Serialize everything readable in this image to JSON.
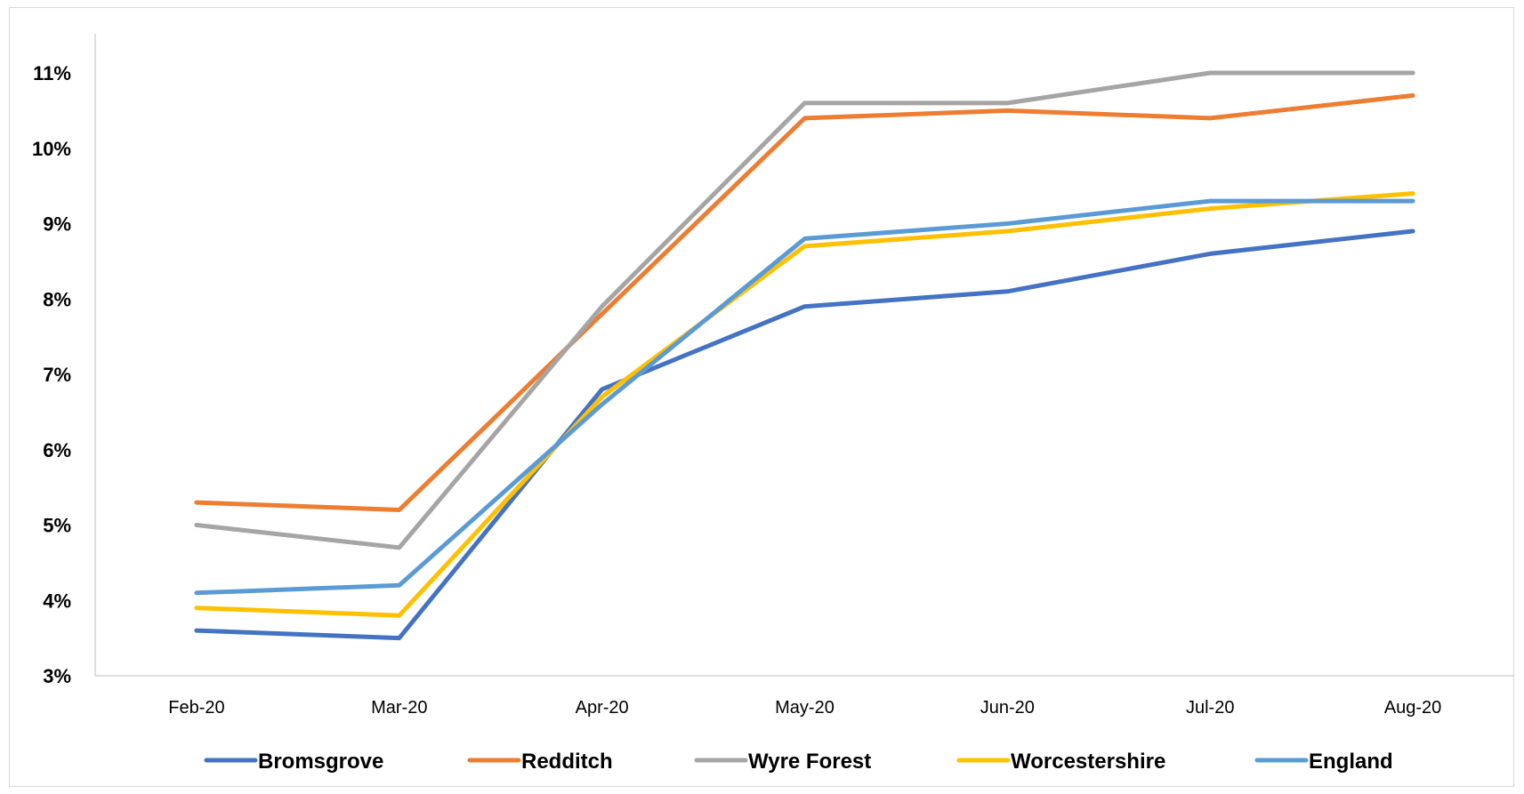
{
  "chart_data": {
    "type": "line",
    "title": "",
    "xlabel": "",
    "ylabel": "",
    "categories": [
      "Feb-20",
      "Mar-20",
      "Apr-20",
      "May-20",
      "Jun-20",
      "Jul-20",
      "Aug-20"
    ],
    "ylim": [
      3,
      11
    ],
    "yticks": [
      "3%",
      "4%",
      "5%",
      "6%",
      "7%",
      "8%",
      "9%",
      "10%",
      "11%"
    ],
    "grid": false,
    "legend_position": "bottom",
    "series": [
      {
        "name": "Bromsgrove",
        "color": "#4472C4",
        "values": [
          3.6,
          3.5,
          6.8,
          7.9,
          8.1,
          8.6,
          8.9
        ]
      },
      {
        "name": "Redditch",
        "color": "#ED7D31",
        "values": [
          5.3,
          5.2,
          7.8,
          10.4,
          10.5,
          10.4,
          10.7
        ]
      },
      {
        "name": "Wyre Forest",
        "color": "#A5A5A5",
        "values": [
          5.0,
          4.7,
          7.9,
          10.6,
          10.6,
          11.0,
          11.0
        ]
      },
      {
        "name": "Worcestershire",
        "color": "#FFC000",
        "values": [
          3.9,
          3.8,
          6.7,
          8.7,
          8.9,
          9.2,
          9.4
        ]
      },
      {
        "name": "England",
        "color": "#5B9BD5",
        "values": [
          4.1,
          4.2,
          6.6,
          8.8,
          9.0,
          9.3,
          9.3
        ]
      }
    ]
  }
}
